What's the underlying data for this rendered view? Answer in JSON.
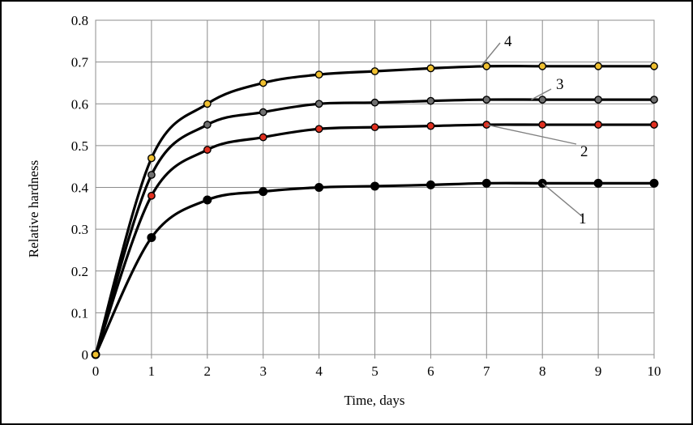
{
  "chart_data": {
    "type": "line",
    "title": "",
    "xlabel": "Time, days",
    "ylabel": "Relative hardness",
    "xlim": [
      0,
      10
    ],
    "ylim": [
      0,
      0.8
    ],
    "x_ticks": [
      "0",
      "1",
      "2",
      "3",
      "4",
      "5",
      "6",
      "7",
      "8",
      "9",
      "10"
    ],
    "y_ticks": [
      "0",
      "0.1",
      "0.2",
      "0.3",
      "0.4",
      "0.5",
      "0.6",
      "0.7",
      "0.8"
    ],
    "grid": true,
    "legend": "none",
    "x": [
      0,
      1,
      2,
      3,
      4,
      5,
      6,
      7,
      8,
      9,
      10
    ],
    "series": [
      {
        "name": "1",
        "values": [
          0,
          0.28,
          0.37,
          0.39,
          0.4,
          0.403,
          0.406,
          0.41,
          0.41,
          0.41,
          0.41
        ],
        "marker": "circle",
        "marker_color": "#000000",
        "line_color": "#000000"
      },
      {
        "name": "2",
        "values": [
          0,
          0.38,
          0.49,
          0.52,
          0.54,
          0.544,
          0.547,
          0.55,
          0.55,
          0.55,
          0.55
        ],
        "marker": "circle",
        "marker_color": "#e03020",
        "line_color": "#000000"
      },
      {
        "name": "3",
        "values": [
          0,
          0.43,
          0.55,
          0.58,
          0.6,
          0.603,
          0.607,
          0.61,
          0.61,
          0.61,
          0.61
        ],
        "marker": "circle",
        "marker_color": "#707070",
        "line_color": "#000000"
      },
      {
        "name": "4",
        "values": [
          0,
          0.47,
          0.6,
          0.65,
          0.67,
          0.678,
          0.685,
          0.69,
          0.69,
          0.69,
          0.69
        ],
        "marker": "circle",
        "marker_color": "#f0c030",
        "line_color": "#000000"
      }
    ],
    "callouts": [
      {
        "label": "1",
        "points_to": {
          "x": 8,
          "y": 0.41
        }
      },
      {
        "label": "2",
        "points_to": {
          "x": 7,
          "y": 0.55
        }
      },
      {
        "label": "3",
        "points_to": {
          "x": 7.8,
          "y": 0.61
        }
      },
      {
        "label": "4",
        "points_to": {
          "x": 6.9,
          "y": 0.69
        }
      }
    ]
  }
}
